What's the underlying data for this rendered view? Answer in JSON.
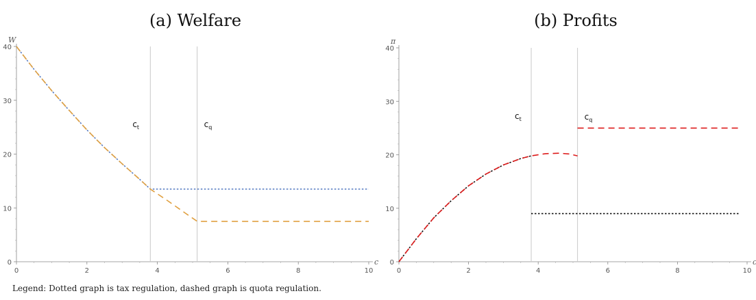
{
  "chart_data": [
    {
      "type": "line",
      "title": "(a) Welfare",
      "ylabel": "W",
      "xlabel": "c",
      "xlim": [
        0,
        10
      ],
      "ylim": [
        0,
        40
      ],
      "xticks": [
        0,
        2,
        4,
        6,
        8,
        10
      ],
      "yticks": [
        0,
        10,
        20,
        30,
        40
      ],
      "grid": false,
      "thresholds": [
        {
          "base": "c",
          "sub": "t",
          "x": 3.8
        },
        {
          "base": "c",
          "sub": "q",
          "x": 5.13
        }
      ],
      "series": [
        {
          "color": "#5b7fc4",
          "dash": "dotted",
          "x": [
            0,
            0.5,
            1,
            1.5,
            2,
            2.5,
            3,
            3.5,
            3.8,
            4.5,
            5,
            6,
            7,
            8,
            9,
            10
          ],
          "y": [
            40,
            35.75,
            31.8,
            28.1,
            24.5,
            21.2,
            18.2,
            15.3,
            13.5,
            13.5,
            13.5,
            13.5,
            13.5,
            13.5,
            13.5,
            13.5
          ]
        },
        {
          "color": "#e0a040",
          "dash": "dashed",
          "x": [
            0,
            0.5,
            1,
            1.5,
            2,
            2.5,
            3,
            3.5,
            3.8,
            4.3,
            4.8,
            5.13,
            6,
            7,
            8,
            9,
            10
          ],
          "y": [
            40,
            35.75,
            31.8,
            28.1,
            24.5,
            21.2,
            18.2,
            15.3,
            13.5,
            11.3,
            9.0,
            7.5,
            7.5,
            7.5,
            7.5,
            7.5,
            7.5
          ]
        }
      ]
    },
    {
      "type": "line",
      "title": "(b) Profits",
      "ylabel": "π",
      "xlabel": "c",
      "xlim": [
        0,
        10
      ],
      "ylim": [
        0,
        40
      ],
      "xticks": [
        0,
        2,
        4,
        6,
        8,
        10
      ],
      "yticks": [
        0,
        10,
        20,
        30,
        40
      ],
      "grid": false,
      "thresholds": [
        {
          "base": "c",
          "sub": "t",
          "x": 3.8
        },
        {
          "base": "c",
          "sub": "q",
          "x": 5.13
        }
      ],
      "series": [
        {
          "color": "#111111",
          "dash": "dotted",
          "x": [
            0,
            0.5,
            1,
            1.5,
            2,
            2.5,
            3,
            3.5,
            3.8
          ],
          "y": [
            0,
            4.3,
            8.2,
            11.4,
            14.2,
            16.4,
            18.1,
            19.3,
            19.8
          ],
          "breaks": true,
          "x2": [
            3.8,
            5,
            6,
            7,
            8,
            9,
            9.8
          ],
          "y2": [
            9,
            9,
            9,
            9,
            9,
            9,
            9
          ]
        },
        {
          "color": "#dd1a1a",
          "dash": "dashed",
          "x": [
            0,
            0.5,
            1,
            1.5,
            2,
            2.5,
            3,
            3.5,
            3.8,
            4.2,
            4.6,
            4.9,
            5.13
          ],
          "y": [
            0,
            4.3,
            8.2,
            11.4,
            14.2,
            16.4,
            18.1,
            19.3,
            19.8,
            20.2,
            20.3,
            20.15,
            19.8
          ],
          "breaks": true,
          "x2": [
            5.13,
            6,
            7,
            8,
            9,
            9.8
          ],
          "y2": [
            25,
            25,
            25,
            25,
            25,
            25
          ]
        }
      ]
    }
  ],
  "legend_text": "Legend: Dotted graph is tax regulation, dashed graph is quota regulation."
}
